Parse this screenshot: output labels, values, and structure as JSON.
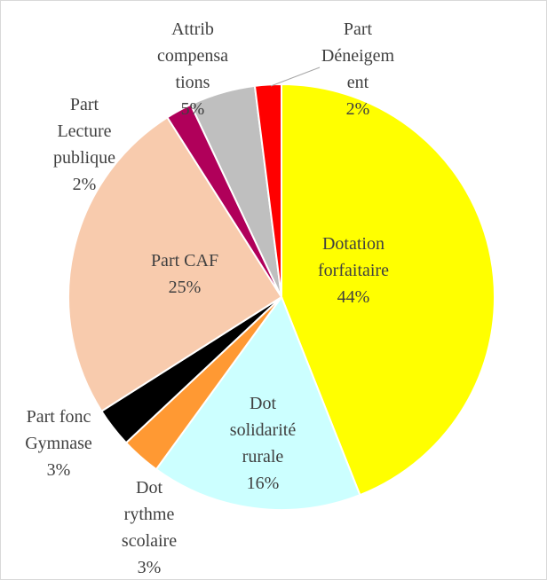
{
  "chart_data": {
    "type": "pie",
    "categories": [
      "Dotation\nforfaitaire",
      "Dot\nsolidarité\nrurale",
      "Dot\nrythme\nscolaire",
      "Part fonc\nGymnase",
      "Part CAF",
      "Part\nLecture\npublique",
      "Attrib\ncompensa\ntions",
      "Part\nDéneigem\nent"
    ],
    "values": [
      44,
      16,
      3,
      3,
      25,
      2,
      5,
      2
    ],
    "value_labels": [
      "44%",
      "16%",
      "3%",
      "3%",
      "25%",
      "2%",
      "5%",
      "2%"
    ],
    "colors": [
      "#ffff00",
      "#ccffff",
      "#ff9933",
      "#000000",
      "#f8cbad",
      "#b0005a",
      "#bfbfbf",
      "#ff0000"
    ]
  }
}
